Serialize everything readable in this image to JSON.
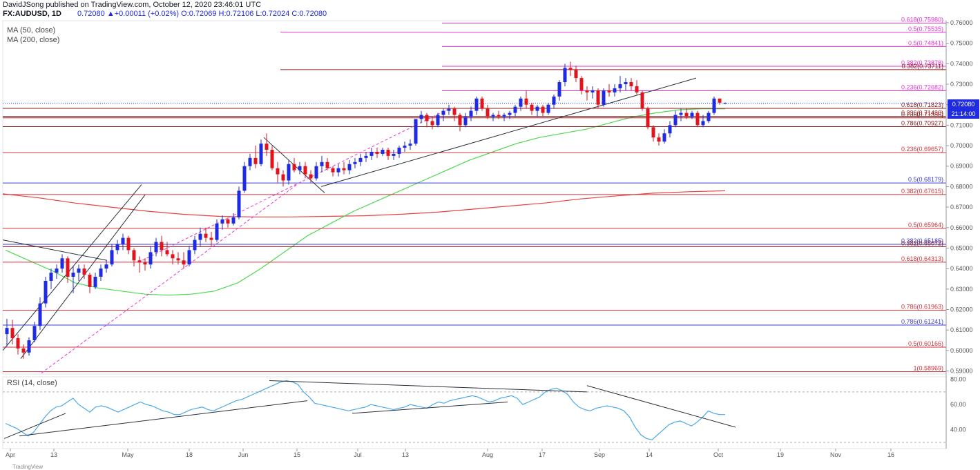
{
  "header": {
    "publish_line": "DavidJSong published on TradingView.com, October 12, 2020 23:46:01 UTC",
    "symbol": "FX:AUDUSD, 1D",
    "ohlc": "0.72080  ▲+0.00011 (+0.02%) O:0.72069 H:0.72106 L:0.72024 C:0.72080"
  },
  "indicators": {
    "ma50": "MA (50, close)",
    "ma200": "MA (200, close)",
    "rsi": "RSI (14, close)"
  },
  "price_badge": {
    "value": "0.72080",
    "countdown": "21:14:00"
  },
  "watermark": "TradingView",
  "colors": {
    "up": "#1e2be0",
    "down": "#e0131e",
    "ma50": "#4dd84d",
    "ma200": "#e8413f",
    "fib_pink": "#e833d4",
    "fib_dark": "#8b1a1a",
    "fib_red": "#d0333a",
    "rsi": "#4aa8e8",
    "trend": "#2a2e39",
    "blue_line": "#3b3bd1"
  },
  "chart_data": {
    "type": "candlestick",
    "price_axis": {
      "min": 0.5885,
      "max": 0.761,
      "ticks": [
        "0.76000",
        "0.75000",
        "0.74000",
        "0.73000",
        "0.72000",
        "0.71000",
        "0.70000",
        "0.69000",
        "0.68000",
        "0.67000",
        "0.66000",
        "0.65000",
        "0.64000",
        "0.63000",
        "0.62000",
        "0.61000",
        "0.60000",
        "0.59000"
      ]
    },
    "time_axis": [
      "Apr",
      "13",
      "May",
      "18",
      "Jun",
      "15",
      "Jul",
      "13",
      "Aug",
      "17",
      "Sep",
      "14",
      "Oct",
      "19",
      "Nov",
      "16"
    ],
    "rsi_axis": {
      "min": 25,
      "max": 82,
      "ticks": [
        "80.00",
        "60.00",
        "40.00"
      ]
    },
    "fib_levels": [
      {
        "text": "0.618(0.75980)",
        "value": 0.7598,
        "style": "pink"
      },
      {
        "text": "0.5(0.75535)",
        "value": 0.75535,
        "style": "pink"
      },
      {
        "text": "0.5(0.74841)",
        "value": 0.74841,
        "style": "pink"
      },
      {
        "text": "0.382(0.73878)",
        "value": 0.73878,
        "style": "pink"
      },
      {
        "text": "0.382(0.73711)",
        "value": 0.73711,
        "style": "dark"
      },
      {
        "text": "0.236(0.72682)",
        "value": 0.72682,
        "style": "pink"
      },
      {
        "text": "0.618(0.71823)",
        "value": 0.71823,
        "style": "dark"
      },
      {
        "text": "0.236(0.71430)",
        "value": 0.7143,
        "style": "dark"
      },
      {
        "text": "0.236(0.71356)",
        "value": 0.71356,
        "style": "dark"
      },
      {
        "text": "0.786(0.70927)",
        "value": 0.70927,
        "style": "dark"
      },
      {
        "text": "0.236(0.69657)",
        "value": 0.69657,
        "style": "red"
      },
      {
        "text": "0.5(0.68179)",
        "value": 0.68179,
        "style": "blue"
      },
      {
        "text": "0.382(0.67615)",
        "value": 0.67615,
        "style": "red"
      },
      {
        "text": "0.5(0.65964)",
        "value": 0.65964,
        "style": "red"
      },
      {
        "text": "0.382(0.65185)",
        "value": 0.65185,
        "style": "blue"
      },
      {
        "text": "0.382(0.65072)",
        "value": 0.65072,
        "style": "dark"
      },
      {
        "text": "0.618(0.64313)",
        "value": 0.64313,
        "style": "red"
      },
      {
        "text": "0.786(0.61963)",
        "value": 0.61963,
        "style": "red"
      },
      {
        "text": "0.786(0.61241)",
        "value": 0.61241,
        "style": "blue"
      },
      {
        "text": "0.5(0.60166)",
        "value": 0.60166,
        "style": "red"
      },
      {
        "text": "1(0.58969)",
        "value": 0.58969,
        "style": "red"
      }
    ],
    "candles": [
      [
        0.608,
        0.6155,
        0.602,
        0.611
      ],
      [
        0.611,
        0.615,
        0.603,
        0.606
      ],
      [
        0.606,
        0.608,
        0.598,
        0.601
      ],
      [
        0.601,
        0.603,
        0.596,
        0.599
      ],
      [
        0.599,
        0.6065,
        0.5975,
        0.605
      ],
      [
        0.605,
        0.614,
        0.604,
        0.612
      ],
      [
        0.612,
        0.626,
        0.61,
        0.623
      ],
      [
        0.623,
        0.636,
        0.621,
        0.634
      ],
      [
        0.634,
        0.64,
        0.63,
        0.638
      ],
      [
        0.638,
        0.642,
        0.635,
        0.64
      ],
      [
        0.64,
        0.647,
        0.638,
        0.645
      ],
      [
        0.645,
        0.646,
        0.633,
        0.636
      ],
      [
        0.636,
        0.641,
        0.628,
        0.638
      ],
      [
        0.638,
        0.642,
        0.634,
        0.64
      ],
      [
        0.64,
        0.642,
        0.635,
        0.637
      ],
      [
        0.637,
        0.638,
        0.628,
        0.631
      ],
      [
        0.631,
        0.638,
        0.63,
        0.636
      ],
      [
        0.636,
        0.642,
        0.634,
        0.64
      ],
      [
        0.64,
        0.644,
        0.638,
        0.642
      ],
      [
        0.642,
        0.652,
        0.641,
        0.649
      ],
      [
        0.649,
        0.654,
        0.647,
        0.652
      ],
      [
        0.652,
        0.657,
        0.649,
        0.655
      ],
      [
        0.655,
        0.656,
        0.647,
        0.649
      ],
      [
        0.649,
        0.65,
        0.641,
        0.644
      ],
      [
        0.644,
        0.646,
        0.638,
        0.643
      ],
      [
        0.643,
        0.645,
        0.639,
        0.642
      ],
      [
        0.642,
        0.651,
        0.64,
        0.648
      ],
      [
        0.648,
        0.655,
        0.646,
        0.653
      ],
      [
        0.653,
        0.656,
        0.646,
        0.649
      ],
      [
        0.649,
        0.653,
        0.646,
        0.647
      ],
      [
        0.647,
        0.649,
        0.642,
        0.645
      ],
      [
        0.645,
        0.648,
        0.642,
        0.644
      ],
      [
        0.644,
        0.648,
        0.64,
        0.642
      ],
      [
        0.642,
        0.651,
        0.641,
        0.649
      ],
      [
        0.649,
        0.656,
        0.647,
        0.654
      ],
      [
        0.654,
        0.66,
        0.651,
        0.657
      ],
      [
        0.657,
        0.66,
        0.653,
        0.655
      ],
      [
        0.655,
        0.658,
        0.651,
        0.654
      ],
      [
        0.654,
        0.664,
        0.653,
        0.662
      ],
      [
        0.662,
        0.666,
        0.659,
        0.664
      ],
      [
        0.664,
        0.665,
        0.66,
        0.662
      ],
      [
        0.662,
        0.667,
        0.661,
        0.665
      ],
      [
        0.665,
        0.68,
        0.664,
        0.678
      ],
      [
        0.678,
        0.692,
        0.677,
        0.69
      ],
      [
        0.69,
        0.696,
        0.688,
        0.694
      ],
      [
        0.694,
        0.7,
        0.689,
        0.691
      ],
      [
        0.691,
        0.703,
        0.69,
        0.701
      ],
      [
        0.701,
        0.706,
        0.695,
        0.698
      ],
      [
        0.698,
        0.7,
        0.688,
        0.689
      ],
      [
        0.689,
        0.692,
        0.682,
        0.686
      ],
      [
        0.686,
        0.688,
        0.68,
        0.683
      ],
      [
        0.683,
        0.693,
        0.681,
        0.691
      ],
      [
        0.691,
        0.694,
        0.687,
        0.688
      ],
      [
        0.688,
        0.692,
        0.686,
        0.69
      ],
      [
        0.69,
        0.692,
        0.684,
        0.686
      ],
      [
        0.686,
        0.688,
        0.682,
        0.684
      ],
      [
        0.684,
        0.692,
        0.683,
        0.69
      ],
      [
        0.69,
        0.695,
        0.687,
        0.692
      ],
      [
        0.692,
        0.694,
        0.688,
        0.689
      ],
      [
        0.689,
        0.69,
        0.685,
        0.687
      ],
      [
        0.687,
        0.691,
        0.685,
        0.689
      ],
      [
        0.689,
        0.692,
        0.686,
        0.688
      ],
      [
        0.688,
        0.693,
        0.686,
        0.691
      ],
      [
        0.691,
        0.694,
        0.689,
        0.692
      ],
      [
        0.692,
        0.696,
        0.69,
        0.694
      ],
      [
        0.694,
        0.697,
        0.692,
        0.695
      ],
      [
        0.695,
        0.699,
        0.693,
        0.697
      ],
      [
        0.697,
        0.699,
        0.694,
        0.696
      ],
      [
        0.696,
        0.699,
        0.695,
        0.698
      ],
      [
        0.698,
        0.699,
        0.693,
        0.695
      ],
      [
        0.695,
        0.698,
        0.693,
        0.696
      ],
      [
        0.696,
        0.7,
        0.694,
        0.699
      ],
      [
        0.699,
        0.702,
        0.697,
        0.7
      ],
      [
        0.7,
        0.703,
        0.698,
        0.701
      ],
      [
        0.701,
        0.712,
        0.7,
        0.713
      ],
      [
        0.713,
        0.717,
        0.711,
        0.715
      ],
      [
        0.715,
        0.716,
        0.709,
        0.712
      ],
      [
        0.712,
        0.714,
        0.708,
        0.71
      ],
      [
        0.71,
        0.716,
        0.709,
        0.715
      ],
      [
        0.715,
        0.718,
        0.712,
        0.717
      ],
      [
        0.717,
        0.72,
        0.715,
        0.718
      ],
      [
        0.718,
        0.719,
        0.712,
        0.715
      ],
      [
        0.715,
        0.716,
        0.707,
        0.71
      ],
      [
        0.71,
        0.716,
        0.709,
        0.714
      ],
      [
        0.714,
        0.719,
        0.712,
        0.717
      ],
      [
        0.717,
        0.724,
        0.715,
        0.723
      ],
      [
        0.723,
        0.724,
        0.717,
        0.718
      ],
      [
        0.718,
        0.72,
        0.713,
        0.714
      ],
      [
        0.714,
        0.716,
        0.712,
        0.715
      ],
      [
        0.715,
        0.717,
        0.713,
        0.714
      ],
      [
        0.714,
        0.716,
        0.712,
        0.715
      ],
      [
        0.715,
        0.717,
        0.713,
        0.716
      ],
      [
        0.716,
        0.72,
        0.714,
        0.719
      ],
      [
        0.719,
        0.724,
        0.717,
        0.723
      ],
      [
        0.723,
        0.727,
        0.718,
        0.72
      ],
      [
        0.72,
        0.721,
        0.715,
        0.717
      ],
      [
        0.717,
        0.72,
        0.714,
        0.719
      ],
      [
        0.719,
        0.72,
        0.714,
        0.716
      ],
      [
        0.716,
        0.721,
        0.715,
        0.72
      ],
      [
        0.72,
        0.725,
        0.718,
        0.724
      ],
      [
        0.724,
        0.732,
        0.722,
        0.731
      ],
      [
        0.731,
        0.74,
        0.729,
        0.738
      ],
      [
        0.738,
        0.741,
        0.734,
        0.737
      ],
      [
        0.737,
        0.739,
        0.731,
        0.733
      ],
      [
        0.733,
        0.734,
        0.725,
        0.727
      ],
      [
        0.727,
        0.729,
        0.722,
        0.726
      ],
      [
        0.726,
        0.729,
        0.723,
        0.727
      ],
      [
        0.727,
        0.728,
        0.718,
        0.72
      ],
      [
        0.72,
        0.728,
        0.719,
        0.727
      ],
      [
        0.727,
        0.73,
        0.724,
        0.726
      ],
      [
        0.726,
        0.73,
        0.724,
        0.728
      ],
      [
        0.728,
        0.734,
        0.726,
        0.73
      ],
      [
        0.73,
        0.733,
        0.727,
        0.731
      ],
      [
        0.731,
        0.733,
        0.727,
        0.729
      ],
      [
        0.729,
        0.732,
        0.725,
        0.726
      ],
      [
        0.726,
        0.727,
        0.717,
        0.718
      ],
      [
        0.718,
        0.719,
        0.708,
        0.709
      ],
      [
        0.709,
        0.71,
        0.702,
        0.704
      ],
      [
        0.704,
        0.706,
        0.7,
        0.702
      ],
      [
        0.702,
        0.708,
        0.701,
        0.706
      ],
      [
        0.706,
        0.712,
        0.704,
        0.71
      ],
      [
        0.71,
        0.717,
        0.709,
        0.715
      ],
      [
        0.715,
        0.718,
        0.712,
        0.716
      ],
      [
        0.716,
        0.718,
        0.713,
        0.714
      ],
      [
        0.714,
        0.717,
        0.713,
        0.716
      ],
      [
        0.716,
        0.717,
        0.709,
        0.71
      ],
      [
        0.71,
        0.715,
        0.709,
        0.712
      ],
      [
        0.712,
        0.717,
        0.711,
        0.716
      ],
      [
        0.716,
        0.724,
        0.715,
        0.723
      ],
      [
        0.723,
        0.723,
        0.72,
        0.721
      ],
      [
        0.72069,
        0.72106,
        0.72024,
        0.7208
      ]
    ],
    "ma50": [
      0.649,
      0.644,
      0.639,
      0.633,
      0.6305,
      0.629,
      0.6275,
      0.627,
      0.6275,
      0.629,
      0.633,
      0.64,
      0.648,
      0.656,
      0.662,
      0.668,
      0.673,
      0.678,
      0.683,
      0.688,
      0.693,
      0.697,
      0.701,
      0.704,
      0.706,
      0.708,
      0.711,
      0.714,
      0.716,
      0.7175,
      0.718,
      0.718
    ],
    "ma200": [
      0.6765,
      0.6745,
      0.672,
      0.67,
      0.668,
      0.6665,
      0.6655,
      0.6652,
      0.6652,
      0.6655,
      0.6658,
      0.6665,
      0.6675,
      0.669,
      0.6705,
      0.672,
      0.674,
      0.6755,
      0.6768,
      0.6775,
      0.678
    ],
    "rsi": [
      45,
      43,
      41,
      38,
      35,
      38,
      44,
      50,
      55,
      58,
      59,
      62,
      65,
      60,
      57,
      54,
      58,
      59,
      58,
      56,
      54,
      56,
      58,
      60,
      62,
      60,
      59,
      57,
      55,
      54,
      52,
      52,
      54,
      56,
      57,
      58,
      56,
      55,
      57,
      59,
      61,
      63,
      64,
      66,
      68,
      70,
      72,
      74,
      76,
      78,
      79,
      78,
      76,
      70,
      66,
      61,
      60,
      59,
      58,
      57,
      56,
      55,
      56,
      57,
      58,
      60,
      59,
      58,
      57,
      56,
      57,
      58,
      60,
      59,
      58,
      57,
      60,
      62,
      61,
      63,
      64,
      65,
      66,
      67,
      66,
      64,
      62,
      63,
      65,
      66,
      67,
      65,
      60,
      62,
      64,
      66,
      70,
      72,
      73,
      71,
      68,
      62,
      58,
      56,
      55,
      57,
      58,
      59,
      58,
      57,
      55,
      50,
      42,
      36,
      33,
      32,
      36,
      40,
      44,
      46,
      47,
      45,
      43,
      46,
      50,
      55,
      53,
      52,
      52
    ]
  }
}
